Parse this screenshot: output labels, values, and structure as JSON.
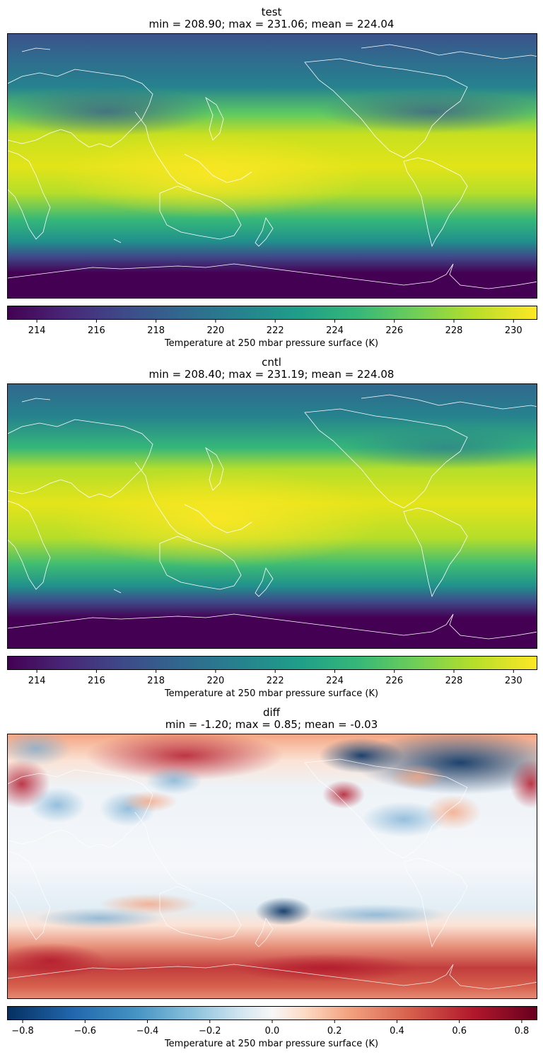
{
  "chart_data": [
    {
      "type": "heatmap",
      "panel": "test",
      "title": "test",
      "subtitle": "min = 208.90; max = 231.06; mean = 224.04",
      "stats": {
        "min": 208.9,
        "max": 231.06,
        "mean": 224.04
      },
      "colormap": "viridis",
      "colorbar": {
        "label": "Temperature at 250 mbar pressure surface (K)",
        "range": [
          213.0,
          230.8
        ],
        "ticks": [
          214,
          216,
          218,
          220,
          222,
          224,
          226,
          228,
          230
        ],
        "tick_labels": [
          "214",
          "216",
          "218",
          "220",
          "222",
          "224",
          "226",
          "228",
          "230"
        ]
      },
      "projection": "PlateCarree, centered 180°",
      "coastlines": "white"
    },
    {
      "type": "heatmap",
      "panel": "cntl",
      "title": "cntl",
      "subtitle": "min = 208.40; max = 231.19; mean = 224.08",
      "stats": {
        "min": 208.4,
        "max": 231.19,
        "mean": 224.08
      },
      "colormap": "viridis",
      "colorbar": {
        "label": "Temperature at 250 mbar pressure surface (K)",
        "range": [
          213.0,
          230.8
        ],
        "ticks": [
          214,
          216,
          218,
          220,
          222,
          224,
          226,
          228,
          230
        ],
        "tick_labels": [
          "214",
          "216",
          "218",
          "220",
          "222",
          "224",
          "226",
          "228",
          "230"
        ]
      },
      "projection": "PlateCarree, centered 180°",
      "coastlines": "white"
    },
    {
      "type": "heatmap",
      "panel": "diff",
      "title": "diff",
      "subtitle": "min = -1.20; max = 0.85; mean = -0.03",
      "stats": {
        "min": -1.2,
        "max": 0.85,
        "mean": -0.03
      },
      "colormap": "RdBu_r",
      "colorbar": {
        "label": "Temperature at 250 mbar pressure surface (K)",
        "range": [
          -0.85,
          0.85
        ],
        "ticks": [
          -0.8,
          -0.6,
          -0.4,
          -0.2,
          0.0,
          0.2,
          0.4,
          0.6,
          0.8
        ],
        "tick_labels": [
          "−0.8",
          "−0.6",
          "−0.4",
          "−0.2",
          "0.0",
          "0.2",
          "0.4",
          "0.6",
          "0.8"
        ]
      },
      "projection": "PlateCarree, centered 180°",
      "coastlines": "white"
    }
  ]
}
